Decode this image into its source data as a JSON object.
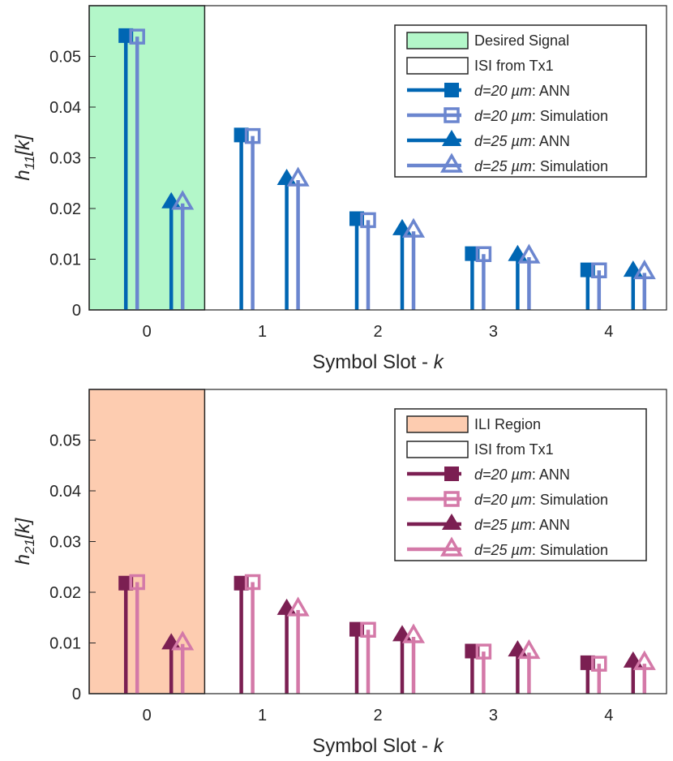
{
  "chart_data": [
    {
      "type": "stem",
      "categories": [
        "0",
        "1",
        "2",
        "3",
        "4"
      ],
      "xlabel": "Symbol Slot - ",
      "xlabel_var": "k",
      "ylabel": "h",
      "ylabel_sub": "11",
      "ylabel_arg": "[k]",
      "ylim": [
        0,
        0.06
      ],
      "yticks": [
        "0",
        "0.01",
        "0.02",
        "0.03",
        "0.04",
        "0.05"
      ],
      "shaded_region": {
        "label": "Desired Signal",
        "color": "#b3f7c9",
        "from_category": "0"
      },
      "colors": {
        "ann": "#0066b3",
        "sim": "#6b86cf"
      },
      "series": [
        {
          "name": "d=20 µm: ANN",
          "marker": "square-filled",
          "values": [
            0.0541,
            0.0345,
            0.018,
            0.0111,
            0.0079
          ]
        },
        {
          "name": "d=20 µm: Simulation",
          "marker": "square-open",
          "values": [
            0.0539,
            0.0343,
            0.0177,
            0.011,
            0.0078
          ]
        },
        {
          "name": "d=25 µm: ANN",
          "marker": "triangle-filled",
          "values": [
            0.021,
            0.0256,
            0.0157,
            0.0106,
            0.0075
          ]
        },
        {
          "name": "d=25 µm: Simulation",
          "marker": "triangle-open",
          "values": [
            0.021,
            0.0256,
            0.0155,
            0.0104,
            0.0073
          ]
        }
      ],
      "legend": [
        {
          "type": "patch-green",
          "label": "Desired Signal"
        },
        {
          "type": "patch-white",
          "label": "ISI from Tx1"
        },
        {
          "type": "series",
          "index": 0,
          "italic": "d=20 ",
          "mu": "µm",
          "rest": ": ANN"
        },
        {
          "type": "series",
          "index": 1,
          "italic": "d=20 ",
          "mu": "µm",
          "rest": ": Simulation"
        },
        {
          "type": "series",
          "index": 2,
          "italic": "d=25 ",
          "mu": "µm",
          "rest": ": ANN"
        },
        {
          "type": "series",
          "index": 3,
          "italic": "d=25 ",
          "mu": "µm",
          "rest": ": Simulation"
        }
      ]
    },
    {
      "type": "stem",
      "categories": [
        "0",
        "1",
        "2",
        "3",
        "4"
      ],
      "xlabel": "Symbol Slot - ",
      "xlabel_var": "k",
      "ylabel": "h",
      "ylabel_sub": "21",
      "ylabel_arg": "[k]",
      "ylim": [
        0,
        0.06
      ],
      "yticks": [
        "0",
        "0.01",
        "0.02",
        "0.03",
        "0.04",
        "0.05"
      ],
      "shaded_region": {
        "label": "ILI Region",
        "color": "#fdccb0",
        "from_category": "0"
      },
      "colors": {
        "ann": "#7b1f52",
        "sim": "#d479a8"
      },
      "series": [
        {
          "name": "d=20 µm: ANN",
          "marker": "square-filled",
          "values": [
            0.0218,
            0.0218,
            0.0127,
            0.0084,
            0.0061
          ]
        },
        {
          "name": "d=20 µm: Simulation",
          "marker": "square-open",
          "values": [
            0.022,
            0.022,
            0.0126,
            0.0083,
            0.0059
          ]
        },
        {
          "name": "d=25 µm: ANN",
          "marker": "triangle-filled",
          "values": [
            0.0097,
            0.0165,
            0.0113,
            0.0083,
            0.0061
          ]
        },
        {
          "name": "d=25 µm: Simulation",
          "marker": "triangle-open",
          "values": [
            0.0098,
            0.0165,
            0.0112,
            0.0081,
            0.0059
          ]
        }
      ],
      "legend": [
        {
          "type": "patch-orange",
          "label": "ILI Region"
        },
        {
          "type": "patch-white",
          "label": "ISI from Tx1"
        },
        {
          "type": "series",
          "index": 0,
          "italic": "d=20 ",
          "mu": "µm",
          "rest": ": ANN"
        },
        {
          "type": "series",
          "index": 1,
          "italic": "d=20 ",
          "mu": "µm",
          "rest": ": Simulation"
        },
        {
          "type": "series",
          "index": 2,
          "italic": "d=25 ",
          "mu": "µm",
          "rest": ": ANN"
        },
        {
          "type": "series",
          "index": 3,
          "italic": "d=25 ",
          "mu": "µm",
          "rest": ": Simulation"
        }
      ]
    }
  ]
}
